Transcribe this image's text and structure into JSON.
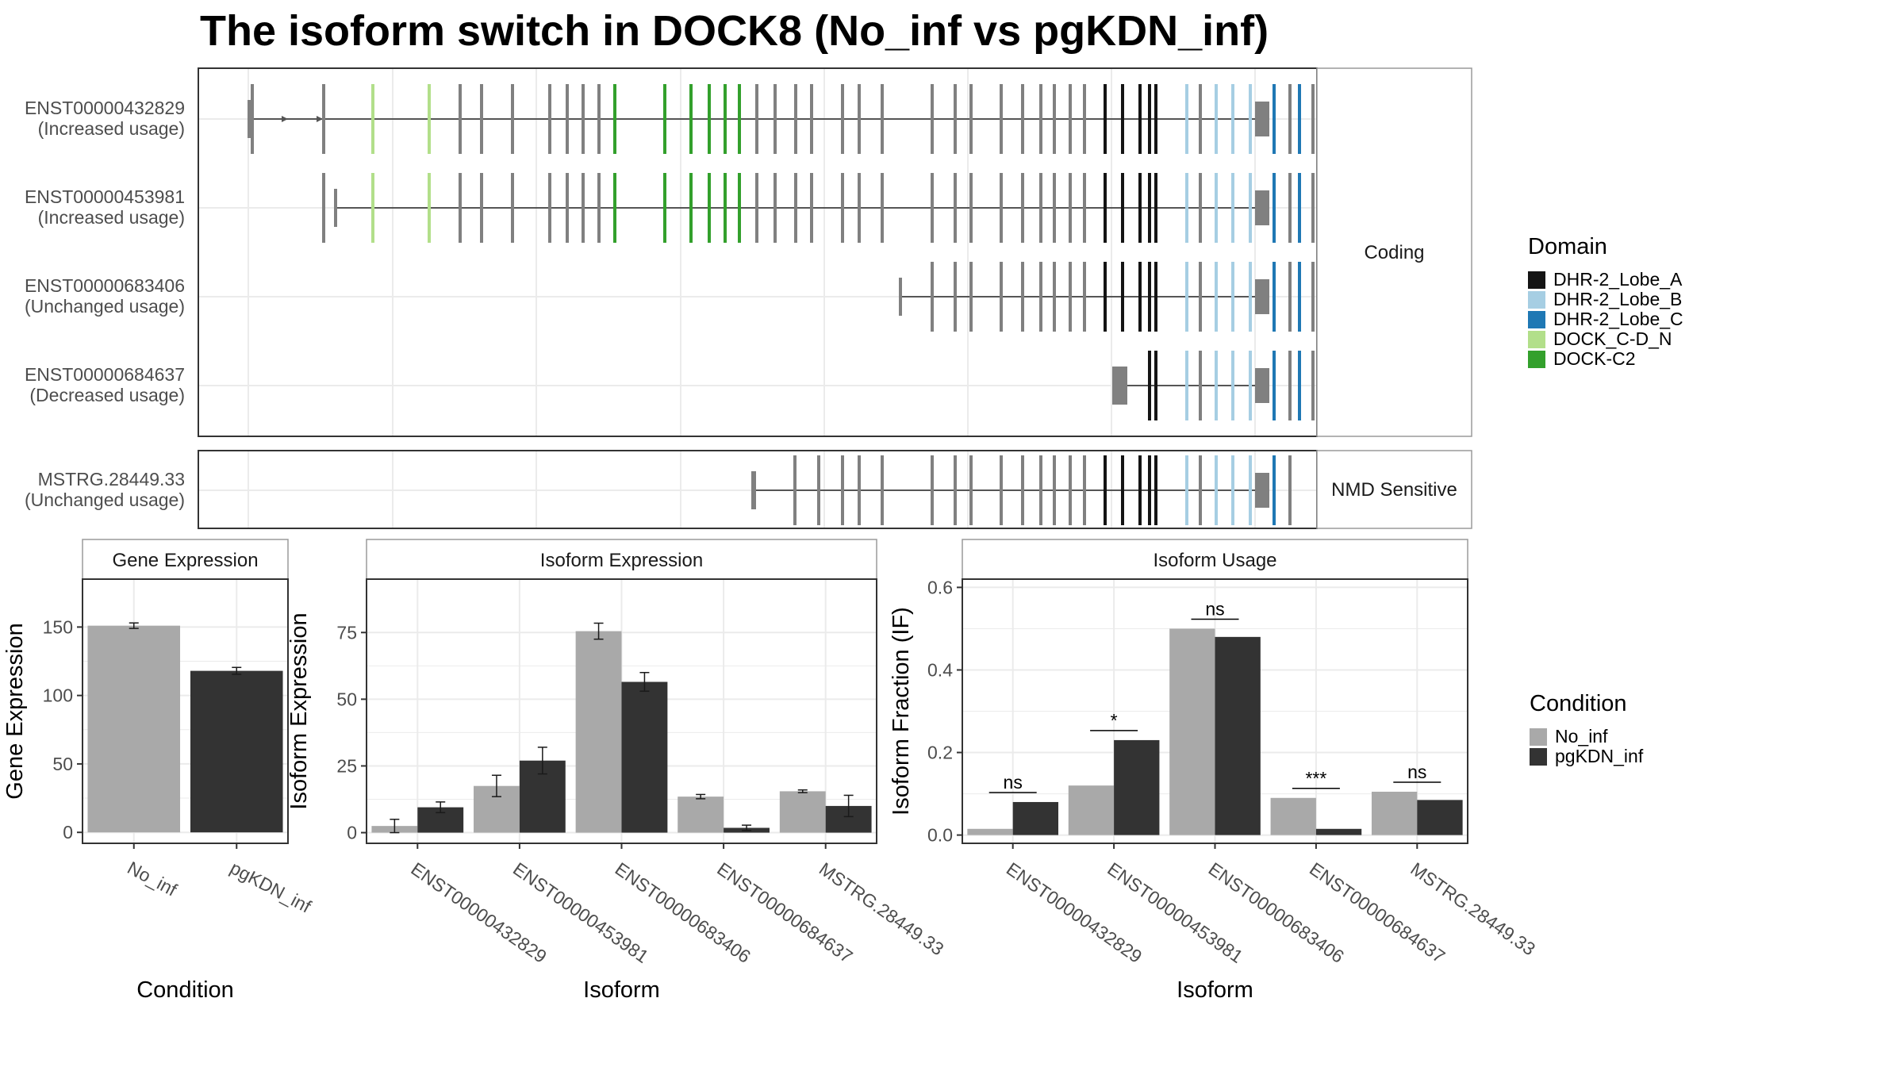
{
  "title": "The isoform switch in DOCK8 (No_inf vs pgKDN_inf)",
  "colors": {
    "exon": "#808080",
    "DHR-2_Lobe_A": "#141414",
    "DHR-2_Lobe_B": "#a6cee3",
    "DHR-2_Lobe_C": "#1f78b4",
    "DOCK_C-D_N": "#b2df8a",
    "DOCK-C2": "#33a02c",
    "No_inf": "#a9a9a9",
    "pgKDN_inf": "#333333",
    "grid": "#ebebeb",
    "panel_border": "#333333",
    "strip_border": "#9a9a9a"
  },
  "structure": {
    "panels": [
      {
        "strip": "Coding",
        "isoforms": [
          {
            "id": "ENST00000432829",
            "note": "(Increased usage)"
          },
          {
            "id": "ENST00000453981",
            "note": "(Increased usage)"
          },
          {
            "id": "ENST00000683406",
            "note": "(Unchanged usage)"
          },
          {
            "id": "ENST00000684637",
            "note": "(Decreased usage)"
          }
        ]
      },
      {
        "strip": "NMD Sensitive",
        "isoforms": [
          {
            "id": "MSTRG.28449.33",
            "note": "(Unchanged usage)"
          }
        ]
      }
    ],
    "domain_legend": {
      "title": "Domain",
      "items": [
        "DHR-2_Lobe_A",
        "DHR-2_Lobe_B",
        "DHR-2_Lobe_C",
        "DOCK_C-D_N",
        "DOCK-C2"
      ]
    }
  },
  "chart_data": [
    {
      "type": "bar",
      "title": "Gene Expression",
      "xlabel": "Condition",
      "ylabel": "Gene Expression",
      "categories": [
        "No_inf",
        "pgKDN_inf"
      ],
      "values": [
        151,
        118
      ],
      "errors": [
        2,
        2.5
      ],
      "ylim": [
        -8,
        185
      ],
      "yticks": [
        0,
        50,
        100,
        150
      ]
    },
    {
      "type": "bar",
      "title": "Isoform Expression",
      "xlabel": "Isoform",
      "ylabel": "Isoform Expression",
      "categories": [
        "ENST00000432829",
        "ENST00000453981",
        "ENST00000683406",
        "ENST00000684637",
        "MSTRG.28449.33"
      ],
      "series": [
        {
          "name": "No_inf",
          "values": [
            2.5,
            17.5,
            75.5,
            13.5,
            15.5
          ],
          "errors": [
            2.5,
            4,
            3,
            0.8,
            0.5
          ]
        },
        {
          "name": "pgKDN_inf",
          "values": [
            9.5,
            27,
            56.5,
            1.8,
            10
          ],
          "errors": [
            2,
            5,
            3.5,
            1,
            4
          ]
        }
      ],
      "ylim": [
        -4,
        95
      ],
      "yticks": [
        0,
        25,
        50,
        75
      ]
    },
    {
      "type": "bar",
      "title": "Isoform Usage",
      "xlabel": "Isoform",
      "ylabel": "Isoform Fraction (IF)",
      "categories": [
        "ENST00000432829",
        "ENST00000453981",
        "ENST00000683406",
        "ENST00000684637",
        "MSTRG.28449.33"
      ],
      "series": [
        {
          "name": "No_inf",
          "values": [
            0.015,
            0.12,
            0.5,
            0.09,
            0.105
          ]
        },
        {
          "name": "pgKDN_inf",
          "values": [
            0.08,
            0.23,
            0.48,
            0.015,
            0.085
          ]
        }
      ],
      "significance": [
        "ns",
        "*",
        "ns",
        "***",
        "ns"
      ],
      "ylim": [
        -0.02,
        0.62
      ],
      "yticks": [
        0.0,
        0.2,
        0.4,
        0.6
      ]
    }
  ],
  "condition_legend": {
    "title": "Condition",
    "items": [
      "No_inf",
      "pgKDN_inf"
    ]
  }
}
